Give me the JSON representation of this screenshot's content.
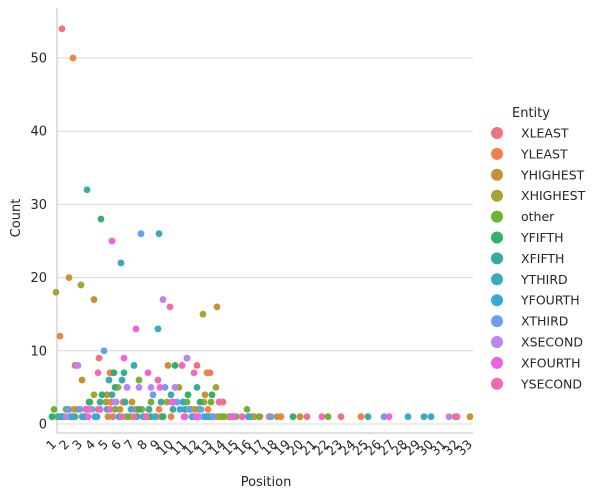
{
  "chart_data": {
    "type": "scatter",
    "title": "",
    "xlabel": "Position",
    "ylabel": "Count",
    "x_categories": [
      "1",
      "2",
      "3",
      "4",
      "5",
      "6",
      "7",
      "8",
      "9",
      "10",
      "11",
      "12",
      "13",
      "14",
      "15",
      "16",
      "17",
      "18",
      "19",
      "20",
      "21",
      "22",
      "23",
      "24",
      "25",
      "26",
      "27",
      "28",
      "29",
      "30",
      "31",
      "32",
      "33"
    ],
    "ylim": [
      0,
      56
    ],
    "yticks": [
      0,
      10,
      20,
      30,
      40,
      50
    ],
    "grid": "horizontal",
    "legend_title": "Entity",
    "legend_position": "right",
    "series": [
      {
        "name": "XLEAST",
        "color": "#f0727e",
        "points": [
          [
            1,
            54
          ],
          [
            1,
            1
          ],
          [
            2,
            8
          ],
          [
            3,
            2
          ],
          [
            4,
            9
          ],
          [
            4,
            2
          ],
          [
            5,
            7
          ],
          [
            5,
            1
          ],
          [
            6,
            3
          ],
          [
            7,
            2
          ],
          [
            8,
            2
          ],
          [
            9,
            1
          ],
          [
            10,
            3
          ],
          [
            11,
            1
          ],
          [
            12,
            8
          ],
          [
            12,
            1
          ],
          [
            13,
            7
          ],
          [
            13,
            1
          ],
          [
            14,
            3
          ],
          [
            14,
            1
          ],
          [
            15,
            1
          ],
          [
            16,
            1
          ],
          [
            17,
            1
          ],
          [
            20,
            1
          ],
          [
            23,
            1
          ]
        ]
      },
      {
        "name": "YLEAST",
        "color": "#f37f4c",
        "points": [
          [
            1,
            12
          ],
          [
            1,
            1
          ],
          [
            2,
            50
          ],
          [
            2,
            2
          ],
          [
            3,
            2
          ],
          [
            4,
            2
          ],
          [
            5,
            7
          ],
          [
            5,
            3
          ],
          [
            6,
            3
          ],
          [
            7,
            2
          ],
          [
            8,
            1
          ],
          [
            9,
            2
          ],
          [
            10,
            1
          ],
          [
            11,
            3
          ],
          [
            12,
            2
          ],
          [
            13,
            7
          ],
          [
            13,
            2
          ],
          [
            14,
            3
          ],
          [
            14,
            1
          ],
          [
            15,
            1
          ],
          [
            17,
            1
          ],
          [
            18,
            1
          ],
          [
            24,
            1
          ]
        ]
      },
      {
        "name": "YHIGHEST",
        "color": "#ca9132",
        "points": [
          [
            2,
            20
          ],
          [
            2,
            1
          ],
          [
            3,
            6
          ],
          [
            4,
            17
          ],
          [
            4,
            1
          ],
          [
            5,
            4
          ],
          [
            5,
            1
          ],
          [
            6,
            2
          ],
          [
            7,
            3
          ],
          [
            8,
            1
          ],
          [
            9,
            1
          ],
          [
            10,
            8
          ],
          [
            11,
            1
          ],
          [
            12,
            4
          ],
          [
            13,
            16
          ],
          [
            13,
            1
          ],
          [
            14,
            1
          ],
          [
            15,
            1
          ],
          [
            16,
            1
          ],
          [
            18,
            1
          ],
          [
            20,
            1
          ],
          [
            33,
            1
          ]
        ]
      },
      {
        "name": "XHIGHEST",
        "color": "#a6a430",
        "points": [
          [
            1,
            18
          ],
          [
            1,
            1
          ],
          [
            2,
            2
          ],
          [
            3,
            19
          ],
          [
            3,
            1
          ],
          [
            4,
            4
          ],
          [
            5,
            3
          ],
          [
            6,
            5
          ],
          [
            7,
            1
          ],
          [
            8,
            2
          ],
          [
            9,
            3
          ],
          [
            10,
            5
          ],
          [
            11,
            2
          ],
          [
            12,
            15
          ],
          [
            12,
            3
          ],
          [
            13,
            5
          ],
          [
            13,
            1
          ],
          [
            14,
            1
          ],
          [
            16,
            1
          ],
          [
            32,
            1
          ]
        ]
      },
      {
        "name": "other",
        "color": "#6fb332",
        "points": [
          [
            1,
            2
          ],
          [
            2,
            2
          ],
          [
            3,
            2
          ],
          [
            4,
            3
          ],
          [
            5,
            2
          ],
          [
            6,
            1
          ],
          [
            7,
            6
          ],
          [
            8,
            3
          ],
          [
            9,
            1
          ],
          [
            10,
            5
          ],
          [
            11,
            3
          ],
          [
            12,
            2
          ],
          [
            13,
            3
          ],
          [
            14,
            1
          ],
          [
            15,
            1
          ],
          [
            16,
            2
          ],
          [
            17,
            1
          ],
          [
            22,
            1
          ]
        ]
      },
      {
        "name": "YFIFTH",
        "color": "#33b06b",
        "points": [
          [
            1,
            1
          ],
          [
            2,
            1
          ],
          [
            3,
            3
          ],
          [
            4,
            28
          ],
          [
            4,
            4
          ],
          [
            5,
            7
          ],
          [
            5,
            5
          ],
          [
            6,
            5
          ],
          [
            7,
            2
          ],
          [
            8,
            1
          ],
          [
            9,
            1
          ],
          [
            10,
            8
          ],
          [
            11,
            9
          ],
          [
            11,
            4
          ],
          [
            12,
            3
          ],
          [
            13,
            4
          ],
          [
            13,
            1
          ],
          [
            19,
            1
          ]
        ]
      },
      {
        "name": "XFIFTH",
        "color": "#36ad9a",
        "points": [
          [
            1,
            1
          ],
          [
            2,
            1
          ],
          [
            3,
            32
          ],
          [
            3,
            2
          ],
          [
            4,
            3
          ],
          [
            5,
            4
          ],
          [
            6,
            7
          ],
          [
            6,
            3
          ],
          [
            7,
            1
          ],
          [
            8,
            2
          ],
          [
            9,
            3
          ],
          [
            10,
            2
          ],
          [
            11,
            2
          ],
          [
            12,
            5
          ],
          [
            13,
            1
          ],
          [
            25,
            1
          ]
        ]
      },
      {
        "name": "YTHIRD",
        "color": "#38aab8",
        "points": [
          [
            1,
            1
          ],
          [
            2,
            1
          ],
          [
            3,
            1
          ],
          [
            4,
            1
          ],
          [
            5,
            6
          ],
          [
            6,
            22
          ],
          [
            6,
            6
          ],
          [
            7,
            8
          ],
          [
            8,
            1
          ],
          [
            9,
            13
          ],
          [
            9,
            26
          ],
          [
            10,
            4
          ],
          [
            11,
            3
          ],
          [
            12,
            1
          ],
          [
            13,
            1
          ],
          [
            14,
            1
          ],
          [
            29,
            1
          ]
        ]
      },
      {
        "name": "YFOURTH",
        "color": "#38a9d5",
        "points": [
          [
            1,
            1
          ],
          [
            2,
            1
          ],
          [
            3,
            1
          ],
          [
            4,
            1
          ],
          [
            5,
            2
          ],
          [
            6,
            1
          ],
          [
            7,
            2
          ],
          [
            8,
            1
          ],
          [
            9,
            1
          ],
          [
            10,
            2
          ],
          [
            11,
            1
          ],
          [
            12,
            1
          ],
          [
            16,
            1
          ],
          [
            28,
            1
          ],
          [
            30,
            1
          ]
        ]
      },
      {
        "name": "XTHIRD",
        "color": "#6e9bf4",
        "points": [
          [
            2,
            2
          ],
          [
            3,
            2
          ],
          [
            4,
            2
          ],
          [
            5,
            10
          ],
          [
            6,
            3
          ],
          [
            7,
            26
          ],
          [
            8,
            4
          ],
          [
            9,
            5
          ],
          [
            10,
            3
          ],
          [
            11,
            2
          ],
          [
            12,
            2
          ],
          [
            13,
            1
          ],
          [
            17,
            1
          ],
          [
            26,
            1
          ]
        ]
      },
      {
        "name": "XSECOND",
        "color": "#bb83f4",
        "points": [
          [
            2,
            1
          ],
          [
            3,
            8
          ],
          [
            4,
            2
          ],
          [
            5,
            3
          ],
          [
            6,
            5
          ],
          [
            7,
            5
          ],
          [
            8,
            5
          ],
          [
            9,
            17
          ],
          [
            10,
            5
          ],
          [
            11,
            9
          ],
          [
            12,
            1
          ],
          [
            15,
            1
          ],
          [
            31,
            1
          ]
        ]
      },
      {
        "name": "XFOURTH",
        "color": "#f161e1",
        "points": [
          [
            3,
            1
          ],
          [
            4,
            2
          ],
          [
            5,
            25
          ],
          [
            6,
            9
          ],
          [
            7,
            13
          ],
          [
            8,
            7
          ],
          [
            9,
            5
          ],
          [
            10,
            3
          ],
          [
            11,
            1
          ],
          [
            12,
            1
          ],
          [
            14,
            1
          ],
          [
            27,
            1
          ]
        ]
      },
      {
        "name": "YSECOND",
        "color": "#f667b4",
        "points": [
          [
            3,
            2
          ],
          [
            4,
            7
          ],
          [
            5,
            2
          ],
          [
            6,
            1
          ],
          [
            7,
            1
          ],
          [
            8,
            1
          ],
          [
            9,
            6
          ],
          [
            10,
            16
          ],
          [
            11,
            8
          ],
          [
            12,
            7
          ],
          [
            13,
            3
          ],
          [
            15,
            1
          ],
          [
            21,
            1
          ],
          [
            32,
            1
          ]
        ]
      }
    ]
  }
}
